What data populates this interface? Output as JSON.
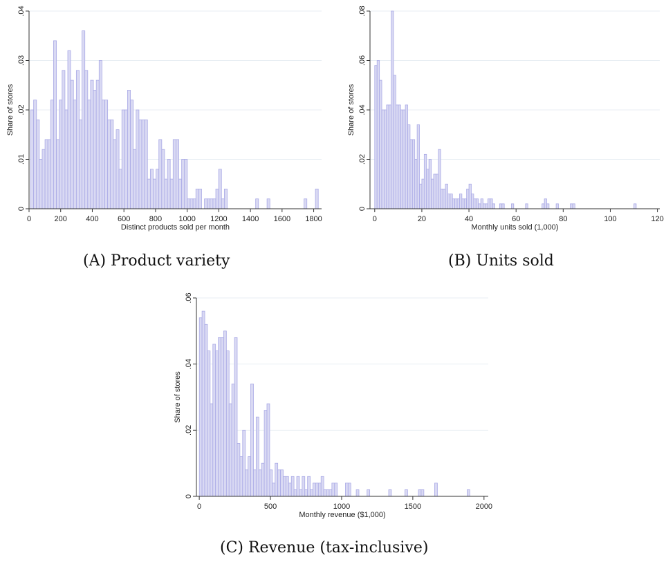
{
  "chart_data": [
    {
      "type": "bar",
      "caption": "(A) Product variety",
      "xlabel": "Distinct products sold per month",
      "ylabel": "Share of stores",
      "xlim": [
        0,
        1850
      ],
      "ylim": [
        0,
        0.04
      ],
      "xticks": [
        0,
        200,
        400,
        600,
        800,
        1000,
        1200,
        1400,
        1600,
        1800
      ],
      "xtick_labels": [
        "0",
        "200",
        "400",
        "600",
        "800",
        "1000",
        "1200",
        "1400",
        "1600",
        "1800"
      ],
      "yticks": [
        0,
        0.01,
        0.02,
        0.03,
        0.04
      ],
      "ytick_labels": [
        "0",
        ".01",
        ".02",
        ".03",
        ".04"
      ],
      "bin_width": 18,
      "grid": true,
      "x": [
        20,
        38,
        56,
        74,
        92,
        110,
        128,
        146,
        164,
        182,
        200,
        218,
        236,
        254,
        272,
        290,
        308,
        326,
        344,
        362,
        380,
        398,
        416,
        434,
        452,
        470,
        488,
        506,
        524,
        542,
        560,
        578,
        596,
        614,
        632,
        650,
        668,
        686,
        704,
        722,
        740,
        758,
        776,
        794,
        812,
        830,
        848,
        866,
        884,
        902,
        920,
        938,
        956,
        974,
        992,
        1010,
        1028,
        1046,
        1064,
        1082,
        1118,
        1136,
        1154,
        1172,
        1190,
        1208,
        1226,
        1244,
        1442,
        1514,
        1748,
        1820
      ],
      "values": [
        0.02,
        0.022,
        0.018,
        0.01,
        0.012,
        0.014,
        0.014,
        0.022,
        0.034,
        0.014,
        0.022,
        0.028,
        0.02,
        0.032,
        0.026,
        0.022,
        0.028,
        0.018,
        0.036,
        0.028,
        0.022,
        0.026,
        0.024,
        0.026,
        0.03,
        0.022,
        0.022,
        0.018,
        0.018,
        0.014,
        0.016,
        0.008,
        0.02,
        0.02,
        0.024,
        0.022,
        0.012,
        0.02,
        0.018,
        0.018,
        0.018,
        0.006,
        0.008,
        0.006,
        0.008,
        0.014,
        0.012,
        0.006,
        0.01,
        0.006,
        0.014,
        0.014,
        0.006,
        0.01,
        0.01,
        0.002,
        0.002,
        0.002,
        0.004,
        0.004,
        0.002,
        0.002,
        0.002,
        0.002,
        0.004,
        0.008,
        0.002,
        0.004,
        0.002,
        0.002,
        0.002,
        0.004
      ]
    },
    {
      "type": "bar",
      "caption": "(B) Units sold",
      "xlabel": "Monthly units sold (1,000)",
      "ylabel": "Share of stores",
      "xlim": [
        -2,
        121
      ],
      "ylim": [
        0,
        0.08
      ],
      "xticks": [
        0,
        20,
        40,
        60,
        80,
        100,
        120
      ],
      "xtick_labels": [
        "0",
        "20",
        "40",
        "60",
        "80",
        "100",
        "120"
      ],
      "yticks": [
        0,
        0.02,
        0.04,
        0.06,
        0.08
      ],
      "ytick_labels": [
        "0",
        ".02",
        ".04",
        ".06",
        ".08"
      ],
      "bin_width": 1,
      "grid": true,
      "x": [
        0.5,
        1.5,
        2.5,
        3.5,
        4.5,
        5.5,
        6.5,
        7.5,
        8.5,
        9.5,
        10.5,
        11.5,
        12.5,
        13.5,
        14.5,
        15.5,
        16.5,
        17.5,
        18.5,
        19.5,
        20.5,
        21.5,
        22.5,
        23.5,
        24.5,
        25.5,
        26.5,
        27.5,
        28.5,
        29.5,
        30.5,
        31.5,
        32.5,
        33.5,
        34.5,
        35.5,
        36.5,
        37.5,
        38.5,
        39.5,
        40.5,
        41.5,
        42.5,
        43.5,
        44.5,
        45.5,
        46.5,
        47.5,
        48.5,
        49.5,
        50.5,
        53.5,
        54.5,
        58.5,
        64.5,
        71.5,
        72.5,
        73.5,
        77.5,
        83.5,
        84.5,
        110.5
      ],
      "values": [
        0.058,
        0.06,
        0.052,
        0.04,
        0.04,
        0.042,
        0.042,
        0.08,
        0.054,
        0.042,
        0.042,
        0.04,
        0.04,
        0.042,
        0.034,
        0.028,
        0.028,
        0.02,
        0.034,
        0.01,
        0.012,
        0.022,
        0.016,
        0.02,
        0.012,
        0.014,
        0.014,
        0.024,
        0.008,
        0.008,
        0.01,
        0.006,
        0.006,
        0.004,
        0.004,
        0.004,
        0.006,
        0.004,
        0.004,
        0.008,
        0.01,
        0.006,
        0.004,
        0.004,
        0.002,
        0.004,
        0.002,
        0.002,
        0.004,
        0.004,
        0.002,
        0.002,
        0.002,
        0.002,
        0.002,
        0.002,
        0.004,
        0.002,
        0.002,
        0.002,
        0.002,
        0.002
      ]
    },
    {
      "type": "bar",
      "caption": "(C) Revenue (tax-inclusive)",
      "xlabel": "Monthly revenue ($1,000)",
      "ylabel": "Share of stores",
      "xlim": [
        -20,
        2030
      ],
      "ylim": [
        0,
        0.06
      ],
      "xticks": [
        0,
        500,
        1000,
        1500,
        2000
      ],
      "xtick_labels": [
        "0",
        "500",
        "1000",
        "1500",
        "2000"
      ],
      "yticks": [
        0,
        0.02,
        0.04,
        0.06
      ],
      "ytick_labels": [
        "0",
        ".02",
        ".04",
        ".06"
      ],
      "bin_width": 19,
      "grid": true,
      "x": [
        10,
        29,
        48,
        67,
        86,
        105,
        124,
        143,
        162,
        181,
        200,
        219,
        238,
        257,
        276,
        295,
        314,
        333,
        352,
        371,
        390,
        409,
        428,
        447,
        466,
        485,
        504,
        523,
        542,
        561,
        580,
        599,
        618,
        637,
        656,
        675,
        694,
        713,
        732,
        751,
        770,
        789,
        808,
        827,
        846,
        865,
        884,
        903,
        922,
        941,
        960,
        1036,
        1055,
        1112,
        1188,
        1340,
        1454,
        1549,
        1568,
        1663,
        1891
      ],
      "values": [
        0.054,
        0.056,
        0.052,
        0.044,
        0.028,
        0.046,
        0.044,
        0.048,
        0.048,
        0.05,
        0.044,
        0.028,
        0.034,
        0.048,
        0.016,
        0.012,
        0.02,
        0.008,
        0.012,
        0.034,
        0.008,
        0.024,
        0.008,
        0.01,
        0.026,
        0.028,
        0.008,
        0.004,
        0.01,
        0.008,
        0.008,
        0.006,
        0.006,
        0.004,
        0.006,
        0.002,
        0.006,
        0.002,
        0.006,
        0.002,
        0.006,
        0.002,
        0.004,
        0.004,
        0.004,
        0.006,
        0.002,
        0.002,
        0.002,
        0.004,
        0.004,
        0.004,
        0.004,
        0.002,
        0.002,
        0.002,
        0.002,
        0.002,
        0.002,
        0.004,
        0.002
      ]
    }
  ],
  "colors": {
    "bar_fill": "#d9d9f3",
    "bar_edge": "#aaaae6",
    "grid": "#e8eef3"
  }
}
